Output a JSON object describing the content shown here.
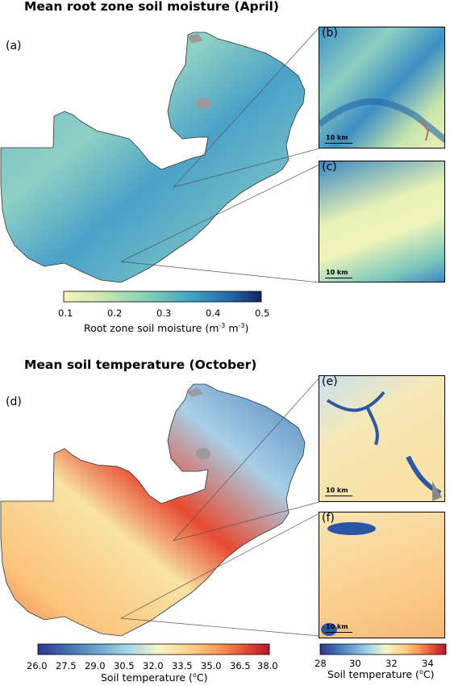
{
  "panel_top": {
    "title": "Mean root zone soil moisture (April)",
    "labels": {
      "main": "(a)",
      "inset1": "(b)",
      "inset2": "(c)"
    },
    "scalebar": "10 km",
    "colorbar": {
      "ticks": [
        "0.1",
        "0.2",
        "0.3",
        "0.4",
        "0.5"
      ],
      "label_prefix": "Root zone soil moisture (m",
      "sup1": "-3",
      "mid": " m",
      "sup2": "-3",
      "suffix": ")",
      "colors": [
        "#f7f6b8",
        "#c9e7b0",
        "#7ccbb8",
        "#3fa2c6",
        "#2363a8",
        "#14245f"
      ]
    }
  },
  "panel_bottom": {
    "title": "Mean soil temperature (October)",
    "labels": {
      "main": "(d)",
      "inset1": "(e)",
      "inset2": "(f)"
    },
    "scalebar": "10 km",
    "colorbar_main": {
      "ticks": [
        "26.0",
        "27.5",
        "29.0",
        "30.5",
        "32.0",
        "33.5",
        "35.0",
        "36.5",
        "38.0"
      ],
      "label_prefix": "Soil temperature (",
      "sup": "o",
      "suffix": "C)"
    },
    "colorbar_inset": {
      "ticks": [
        "28",
        "30",
        "32",
        "34"
      ],
      "label_prefix": "Soil temperature (",
      "sup": "o",
      "suffix": "C)"
    },
    "colors": [
      "#313695",
      "#4575b4",
      "#74add1",
      "#abd9e9",
      "#f7f3c8",
      "#fdd08a",
      "#f99a55",
      "#e24a33",
      "#b2182b"
    ]
  }
}
